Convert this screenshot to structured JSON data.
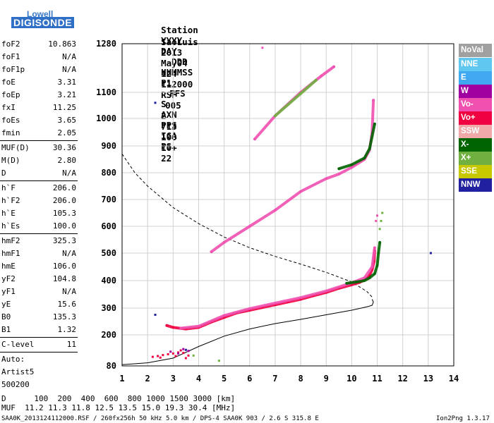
{
  "logo": {
    "brand": "Lowell",
    "product": "DIGISONDE"
  },
  "header": {
    "labels": [
      "Station",
      "YYYY",
      "DAY",
      "DDD",
      "HHMMSS",
      "P1",
      "FFS",
      "S",
      "AXN",
      "PPS",
      "IGA",
      "PS"
    ],
    "values": [
      "SaoLuis",
      "2013",
      "May04",
      "124",
      "112000",
      "RSF",
      "005",
      "2",
      "713",
      "100",
      "10+",
      "22"
    ]
  },
  "params": {
    "group1": [
      {
        "name": "foF2",
        "value": "10.863"
      },
      {
        "name": "foF1",
        "value": "N/A"
      },
      {
        "name": "foF1p",
        "value": "N/A"
      },
      {
        "name": "foE",
        "value": "3.31"
      },
      {
        "name": "foEp",
        "value": "3.21"
      },
      {
        "name": "fxI",
        "value": "11.25"
      },
      {
        "name": "foEs",
        "value": "3.65"
      },
      {
        "name": "fmin",
        "value": "2.05"
      }
    ],
    "group2": [
      {
        "name": "MUF(D)",
        "value": "30.36"
      },
      {
        "name": "M(D)",
        "value": "2.80"
      },
      {
        "name": "D",
        "value": "N/A"
      }
    ],
    "group3": [
      {
        "name": "h`F",
        "value": "206.0"
      },
      {
        "name": "h`F2",
        "value": "206.0"
      },
      {
        "name": "h`E",
        "value": "105.3"
      },
      {
        "name": "h`Es",
        "value": "100.0"
      }
    ],
    "group4": [
      {
        "name": "hmF2",
        "value": "325.3"
      },
      {
        "name": "hmF1",
        "value": "N/A"
      },
      {
        "name": "hmE",
        "value": "106.0"
      },
      {
        "name": "yF2",
        "value": "104.8"
      },
      {
        "name": "yF1",
        "value": "N/A"
      },
      {
        "name": "yE",
        "value": "15.6"
      },
      {
        "name": "B0",
        "value": "135.3"
      },
      {
        "name": "B1",
        "value": "1.32"
      }
    ],
    "clevel": {
      "name": "C-level",
      "value": "11"
    },
    "autoscale": [
      "Auto:",
      "Artist5",
      "500200"
    ]
  },
  "legend": [
    {
      "label": "NoVal",
      "color": "#a0a0a0"
    },
    {
      "label": "NNE",
      "color": "#60c8f0"
    },
    {
      "label": "E",
      "color": "#40a8f0"
    },
    {
      "label": "W",
      "color": "#a000a0"
    },
    {
      "label": "Vo-",
      "color": "#f050b0"
    },
    {
      "label": "Vo+",
      "color": "#f00040"
    },
    {
      "label": "SSW",
      "color": "#f0a8a8"
    },
    {
      "label": "X-",
      "color": "#006400"
    },
    {
      "label": "X+",
      "color": "#70b040"
    },
    {
      "label": "SSE",
      "color": "#c8c800"
    },
    {
      "label": "NNW",
      "color": "#2020a0"
    }
  ],
  "footer": {
    "distance_line": "D      100  200  400  600  800 1000 1500 3000 [km]",
    "muf_line": "MUF  11.2 11.3 11.8 12.5 13.5 15.0 19.3 30.4 [MHz]",
    "file_info": "SAA0K_2013124112000.RSF / 260fx256h 50 kHz 5.0 km / DPS-4 SAA0K 903 / 2.6 S 315.8 E",
    "version": "Ion2Png 1.3.17"
  },
  "chart_data": {
    "type": "scatter",
    "x_ticks": [
      "1",
      "2",
      "3",
      "4",
      "5",
      "6",
      "7",
      "8",
      "9",
      "10",
      "11",
      "12",
      "13",
      "14"
    ],
    "y_ticks": [
      "80",
      "200",
      "300",
      "400",
      "500",
      "600",
      "700",
      "800",
      "900",
      "1000",
      "1100",
      "1280"
    ],
    "xlim": [
      1,
      14
    ],
    "ylim": [
      80,
      1280
    ],
    "grid": true,
    "legend_placement": "right",
    "series": [
      {
        "color": "#f00040",
        "style": "trace",
        "points": [
          [
            2.75,
            235
          ],
          [
            3.0,
            228
          ],
          [
            3.5,
            222
          ],
          [
            4.0,
            228
          ],
          [
            4.5,
            248
          ],
          [
            5.0,
            265
          ],
          [
            5.5,
            282
          ],
          [
            6.0,
            292
          ],
          [
            6.5,
            302
          ],
          [
            7.0,
            312
          ],
          [
            7.5,
            322
          ],
          [
            8.0,
            332
          ],
          [
            8.5,
            345
          ],
          [
            9.0,
            357
          ],
          [
            9.5,
            372
          ],
          [
            10.0,
            385
          ],
          [
            10.3,
            393
          ],
          [
            10.5,
            402
          ],
          [
            10.7,
            418
          ],
          [
            10.8,
            440
          ],
          [
            10.88,
            470
          ],
          [
            10.9,
            510
          ]
        ]
      },
      {
        "color": "#f050b0",
        "style": "trace",
        "points": [
          [
            3.3,
            225
          ],
          [
            4.0,
            232
          ],
          [
            5.0,
            272
          ],
          [
            6.0,
            298
          ],
          [
            7.0,
            318
          ],
          [
            8.0,
            338
          ],
          [
            9.0,
            362
          ],
          [
            10.0,
            392
          ],
          [
            10.5,
            410
          ],
          [
            10.8,
            450
          ],
          [
            10.9,
            520
          ]
        ]
      },
      {
        "color": "#006400",
        "style": "trace",
        "points": [
          [
            9.8,
            390
          ],
          [
            10.2,
            395
          ],
          [
            10.5,
            400
          ],
          [
            10.7,
            410
          ],
          [
            10.9,
            425
          ],
          [
            11.0,
            455
          ],
          [
            11.05,
            500
          ],
          [
            11.1,
            540
          ]
        ]
      },
      {
        "color": "#f050b0",
        "style": "trace",
        "points": [
          [
            4.5,
            505
          ],
          [
            5.0,
            540
          ],
          [
            6.0,
            600
          ],
          [
            7.0,
            660
          ],
          [
            8.0,
            730
          ],
          [
            9.0,
            778
          ],
          [
            9.5,
            795
          ],
          [
            10.0,
            820
          ],
          [
            10.5,
            850
          ],
          [
            10.7,
            885
          ],
          [
            10.8,
            950
          ],
          [
            10.85,
            1070
          ]
        ]
      },
      {
        "color": "#006400",
        "style": "trace",
        "points": [
          [
            9.5,
            815
          ],
          [
            10.0,
            830
          ],
          [
            10.5,
            855
          ],
          [
            10.7,
            890
          ],
          [
            10.9,
            980
          ]
        ]
      },
      {
        "color": "#f050b0",
        "style": "trace",
        "points": [
          [
            6.2,
            925
          ],
          [
            7.0,
            1010
          ],
          [
            8.0,
            1100
          ],
          [
            8.8,
            1160
          ],
          [
            9.3,
            1195
          ]
        ]
      },
      {
        "color": "#70b040",
        "style": "trace",
        "points": [
          [
            7.0,
            1010
          ],
          [
            8.0,
            1095
          ],
          [
            8.6,
            1145
          ]
        ]
      },
      {
        "color": "#f00040",
        "style": "cluster",
        "points": [
          [
            2.2,
            115
          ],
          [
            2.4,
            118
          ],
          [
            2.6,
            122
          ],
          [
            2.8,
            125
          ],
          [
            3.0,
            128
          ],
          [
            3.2,
            132
          ],
          [
            3.4,
            130
          ],
          [
            3.6,
            120
          ],
          [
            2.5,
            112
          ],
          [
            3.1,
            118
          ],
          [
            3.3,
            140
          ],
          [
            3.5,
            110
          ]
        ]
      },
      {
        "color": "#a000a0",
        "style": "cluster",
        "points": [
          [
            2.9,
            135
          ],
          [
            3.2,
            128
          ],
          [
            3.4,
            145
          ],
          [
            3.6,
            138
          ]
        ]
      },
      {
        "color": "#2020a0",
        "style": "cluster",
        "points": [
          [
            2.3,
            1060
          ],
          [
            2.3,
            275
          ],
          [
            13.1,
            500
          ],
          [
            3.5,
            142
          ]
        ]
      },
      {
        "color": "#70b040",
        "style": "cluster",
        "points": [
          [
            11.1,
            590
          ],
          [
            11.15,
            620
          ],
          [
            11.2,
            650
          ],
          [
            4.8,
            100
          ],
          [
            3.8,
            120
          ]
        ]
      },
      {
        "color": "#f050b0",
        "style": "cluster",
        "points": [
          [
            10.95,
            620
          ],
          [
            11.0,
            640
          ],
          [
            6.5,
            1265
          ]
        ]
      }
    ],
    "curves": [
      {
        "style": "dashed",
        "color": "#000000",
        "points": [
          [
            1,
            870
          ],
          [
            1.5,
            800
          ],
          [
            2,
            750
          ],
          [
            3,
            670
          ],
          [
            4,
            610
          ],
          [
            5,
            560
          ],
          [
            6,
            520
          ],
          [
            7,
            488
          ],
          [
            8,
            460
          ],
          [
            9,
            430
          ],
          [
            10,
            395
          ],
          [
            10.6,
            360
          ],
          [
            10.85,
            335
          ]
        ]
      },
      {
        "style": "solid",
        "color": "#000000",
        "points": [
          [
            1,
            85
          ],
          [
            2,
            92
          ],
          [
            3,
            110
          ],
          [
            4,
            155
          ],
          [
            5,
            195
          ],
          [
            6,
            222
          ],
          [
            7,
            242
          ],
          [
            8,
            258
          ],
          [
            9,
            275
          ],
          [
            10,
            292
          ],
          [
            10.6,
            305
          ],
          [
            10.8,
            310
          ],
          [
            10.85,
            322
          ],
          [
            10.8,
            332
          ]
        ]
      }
    ]
  }
}
